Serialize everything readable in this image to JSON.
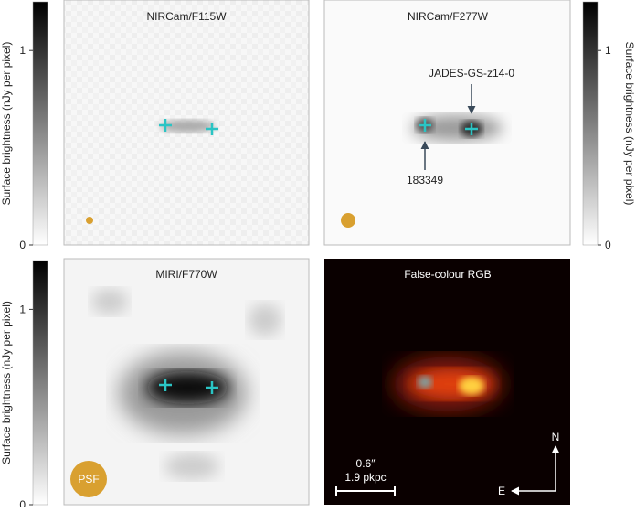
{
  "panels": [
    {
      "title": "NIRCam/F115W"
    },
    {
      "title": "NIRCam/F277W",
      "annotations": [
        "JADES-GS-z14-0",
        "183349"
      ]
    },
    {
      "title": "MIRI/F770W",
      "psf_label": "PSF"
    },
    {
      "title": "False-colour RGB",
      "scale_bar": [
        "0.6″",
        "1.9 pkpc"
      ],
      "compass": [
        "N",
        "E"
      ]
    }
  ],
  "colorbars": [
    {
      "label": "Surface brightness (nJy per pixel)",
      "ylim": [
        0,
        1.25
      ],
      "yticks": [
        0,
        1
      ],
      "side": "left"
    },
    {
      "label": "Surface brightness (nJy per pixel)",
      "ylim": [
        0,
        1.25
      ],
      "yticks": [
        0,
        1
      ],
      "side": "right"
    },
    {
      "label": "Surface brightness (nJy per pixel)",
      "ylim": [
        0,
        1.25
      ],
      "yticks": [
        0,
        1
      ],
      "side": "left"
    }
  ]
}
